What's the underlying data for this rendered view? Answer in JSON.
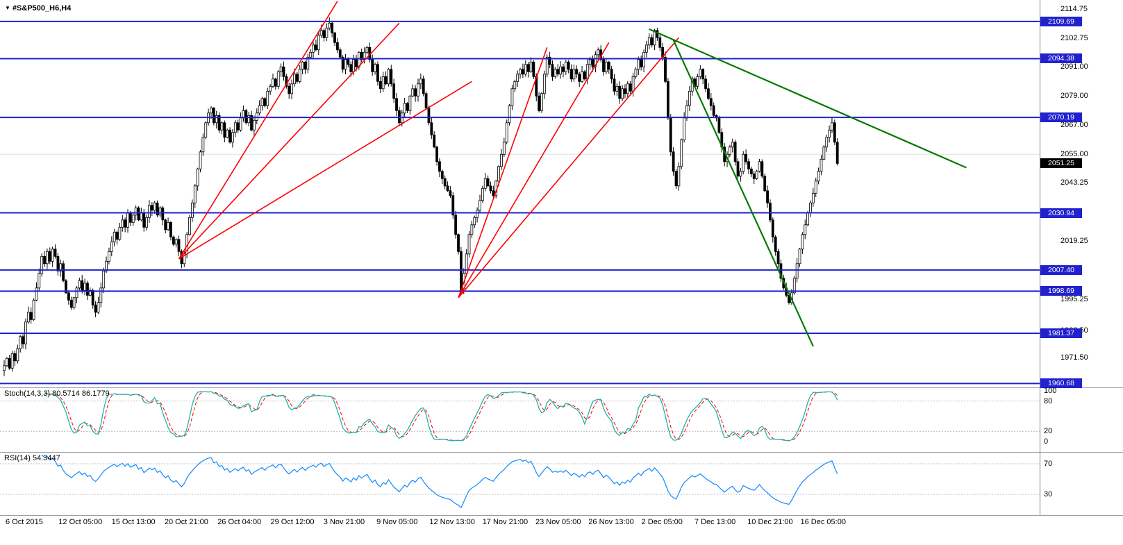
{
  "header": {
    "dropdown_icon": "▼",
    "symbol_label": "#S&P500_H6,H4"
  },
  "colors": {
    "level_blue": "#2121CE",
    "trend_red": "#FF0000",
    "trend_green": "#007A00",
    "candle": "#000000",
    "stoch_main": "#20B2AA",
    "stoch_signal": "#FF0000",
    "rsi_line": "#1E90FF",
    "panel_level": "#BEBEBE",
    "grid": "#E0E0E0",
    "badge_current_bg": "#000000"
  },
  "price_scale": {
    "ticks": [
      {
        "label": "2114.75",
        "value": 2114.75
      },
      {
        "label": "2102.75",
        "value": 2102.75
      },
      {
        "label": "2091.00",
        "value": 2091.0
      },
      {
        "label": "2079.00",
        "value": 2079.0
      },
      {
        "label": "2067.00",
        "value": 2067.0
      },
      {
        "label": "2055.00",
        "value": 2055.0
      },
      {
        "label": "2043.25",
        "value": 2043.25
      },
      {
        "label": "2019.25",
        "value": 2019.25
      },
      {
        "label": "1995.25",
        "value": 1995.25
      },
      {
        "label": "1982.50",
        "value": 1982.5
      },
      {
        "label": "1971.50",
        "value": 1971.5
      }
    ],
    "current": {
      "label": "2051.25",
      "value": 2051.25
    }
  },
  "levels": [
    {
      "label": "2109.69",
      "value": 2109.69
    },
    {
      "label": "2094.38",
      "value": 2094.38
    },
    {
      "label": "2070.19",
      "value": 2070.19
    },
    {
      "label": "2030.94",
      "value": 2030.94
    },
    {
      "label": "2007.40",
      "value": 2007.4
    },
    {
      "label": "1998.69",
      "value": 1998.69
    },
    {
      "label": "1981.37",
      "value": 1981.37
    },
    {
      "label": "1960.68",
      "value": 1960.68
    }
  ],
  "indicators": {
    "stoch": {
      "label": "Stoch(14,3,3) 80.5714 86.1779",
      "period": 14,
      "k_slowing": 3,
      "d_period": 3,
      "current_main": 80.5714,
      "current_signal": 86.1779,
      "scale_ticks": [
        {
          "label": "100",
          "value": 100
        },
        {
          "label": "80",
          "value": 80
        },
        {
          "label": "20",
          "value": 20
        },
        {
          "label": "0",
          "value": 0
        }
      ],
      "dashed_levels": [
        80,
        20
      ]
    },
    "rsi": {
      "label": "RSI(14) 54.3447",
      "period": 14,
      "current": 54.3447,
      "scale_ticks": [
        {
          "label": "70",
          "value": 70
        },
        {
          "label": "30",
          "value": 30
        }
      ],
      "dashed_levels": [
        70,
        30
      ]
    }
  },
  "chart_data": {
    "type": "candlestick",
    "title": "#S&P500_H6,H4",
    "symbol": "#S&P500",
    "timeframe": "H4",
    "ylim": [
      1958,
      2118
    ],
    "grid_levels": [
      2055.0
    ],
    "x_labels": [
      "6 Oct 2015",
      "12 Oct 05:00",
      "15 Oct 13:00",
      "20 Oct 21:00",
      "26 Oct 04:00",
      "29 Oct 12:00",
      "3 Nov 21:00",
      "9 Nov 05:00",
      "12 Nov 13:00",
      "17 Nov 21:00",
      "23 Nov 05:00",
      "26 Nov 13:00",
      "2 Dec 05:00",
      "7 Dec 13:00",
      "10 Dec 21:00",
      "16 Dec 05:00"
    ],
    "last_price": 2051.25,
    "horizontal_levels": [
      2109.69,
      2094.38,
      2070.19,
      2030.94,
      2007.4,
      1998.69,
      1981.37,
      1960.68
    ],
    "closes": [
      1968,
      1971,
      1967,
      1973,
      1970,
      1975,
      1980,
      1977,
      1986,
      1990,
      1987,
      1995,
      2000,
      2006,
      2013,
      2010,
      2015,
      2011,
      2016,
      2013,
      2007,
      2010,
      2003,
      1998,
      1995,
      1992,
      1996,
      2000,
      2003,
      1999,
      2002,
      1997,
      1999,
      1993,
      1990,
      1994,
      2000,
      2007,
      2011,
      2015,
      2019,
      2023,
      2020,
      2025,
      2028,
      2025,
      2031,
      2027,
      2030,
      2033,
      2028,
      2031,
      2025,
      2029,
      2034,
      2032,
      2035,
      2030,
      2033,
      2028,
      2024,
      2027,
      2021,
      2018,
      2020,
      2015,
      2010,
      2014,
      2022,
      2029,
      2035,
      2042,
      2049,
      2056,
      2062,
      2068,
      2072,
      2074,
      2068,
      2071,
      2065,
      2068,
      2062,
      2065,
      2060,
      2064,
      2068,
      2065,
      2070,
      2073,
      2068,
      2071,
      2065,
      2069,
      2072,
      2075,
      2078,
      2075,
      2081,
      2083,
      2086,
      2083,
      2089,
      2091,
      2087,
      2083,
      2080,
      2084,
      2088,
      2085,
      2090,
      2093,
      2090,
      2095,
      2097,
      2100,
      2098,
      2104,
      2106,
      2103,
      2107,
      2109,
      2105,
      2101,
      2098,
      2095,
      2090,
      2094,
      2092,
      2089,
      2094,
      2091,
      2097,
      2094,
      2097,
      2099,
      2094,
      2089,
      2092,
      2085,
      2082,
      2087,
      2084,
      2090,
      2084,
      2078,
      2073,
      2068,
      2072,
      2076,
      2073,
      2079,
      2082,
      2079,
      2084,
      2086,
      2080,
      2074,
      2068,
      2063,
      2058,
      2052,
      2048,
      2045,
      2042,
      2040,
      2038,
      2030,
      2022,
      2015,
      1999,
      2006,
      2014,
      2022,
      2026,
      2029,
      2032,
      2036,
      2041,
      2045,
      2042,
      2040,
      2038,
      2044,
      2050,
      2055,
      2060,
      2068,
      2075,
      2082,
      2085,
      2088,
      2090,
      2088,
      2092,
      2089,
      2093,
      2087,
      2079,
      2073,
      2080,
      2088,
      2095,
      2092,
      2087,
      2090,
      2088,
      2091,
      2089,
      2093,
      2090,
      2086,
      2090,
      2088,
      2085,
      2089,
      2086,
      2092,
      2094,
      2091,
      2096,
      2098,
      2094,
      2089,
      2093,
      2090,
      2086,
      2081,
      2083,
      2078,
      2082,
      2080,
      2084,
      2081,
      2087,
      2090,
      2094,
      2091,
      2097,
      2100,
      2103,
      2100,
      2106,
      2103,
      2099,
      2095,
      2085,
      2070,
      2056,
      2048,
      2042,
      2050,
      2061,
      2070,
      2075,
      2081,
      2086,
      2083,
      2087,
      2090,
      2086,
      2082,
      2078,
      2075,
      2071,
      2070,
      2064,
      2058,
      2052,
      2055,
      2058,
      2060,
      2052,
      2046,
      2048,
      2055,
      2052,
      2049,
      2047,
      2045,
      2048,
      2052,
      2046,
      2040,
      2035,
      2028,
      2021,
      2015,
      2010,
      2004,
      2000,
      1997,
      1994,
      1998,
      2004,
      2010,
      2016,
      2022,
      2026,
      2031,
      2035,
      2039,
      2044,
      2048,
      2053,
      2058,
      2062,
      2065,
      2068,
      2060,
      2051.25
    ],
    "trendlines": [
      {
        "color": "red",
        "from_bar": 65,
        "from_price": 2012,
        "to_bar": 124,
        "to_price": 2118
      },
      {
        "color": "red",
        "from_bar": 65,
        "from_price": 2012,
        "to_bar": 147,
        "to_price": 2109
      },
      {
        "color": "red",
        "from_bar": 65,
        "from_price": 2012,
        "to_bar": 174,
        "to_price": 2085
      },
      {
        "color": "red",
        "from_bar": 169,
        "from_price": 1996,
        "to_bar": 202,
        "to_price": 2099
      },
      {
        "color": "red",
        "from_bar": 169,
        "from_price": 1996,
        "to_bar": 225,
        "to_price": 2101
      },
      {
        "color": "red",
        "from_bar": 169,
        "from_price": 1996,
        "to_bar": 251,
        "to_price": 2103
      },
      {
        "color": "green",
        "from_bar": 240,
        "from_price": 2106.5,
        "to_bar": 358,
        "to_price": 2049.5
      },
      {
        "color": "green",
        "from_bar": 249,
        "from_price": 2102,
        "to_bar": 301,
        "to_price": 1976
      }
    ]
  }
}
